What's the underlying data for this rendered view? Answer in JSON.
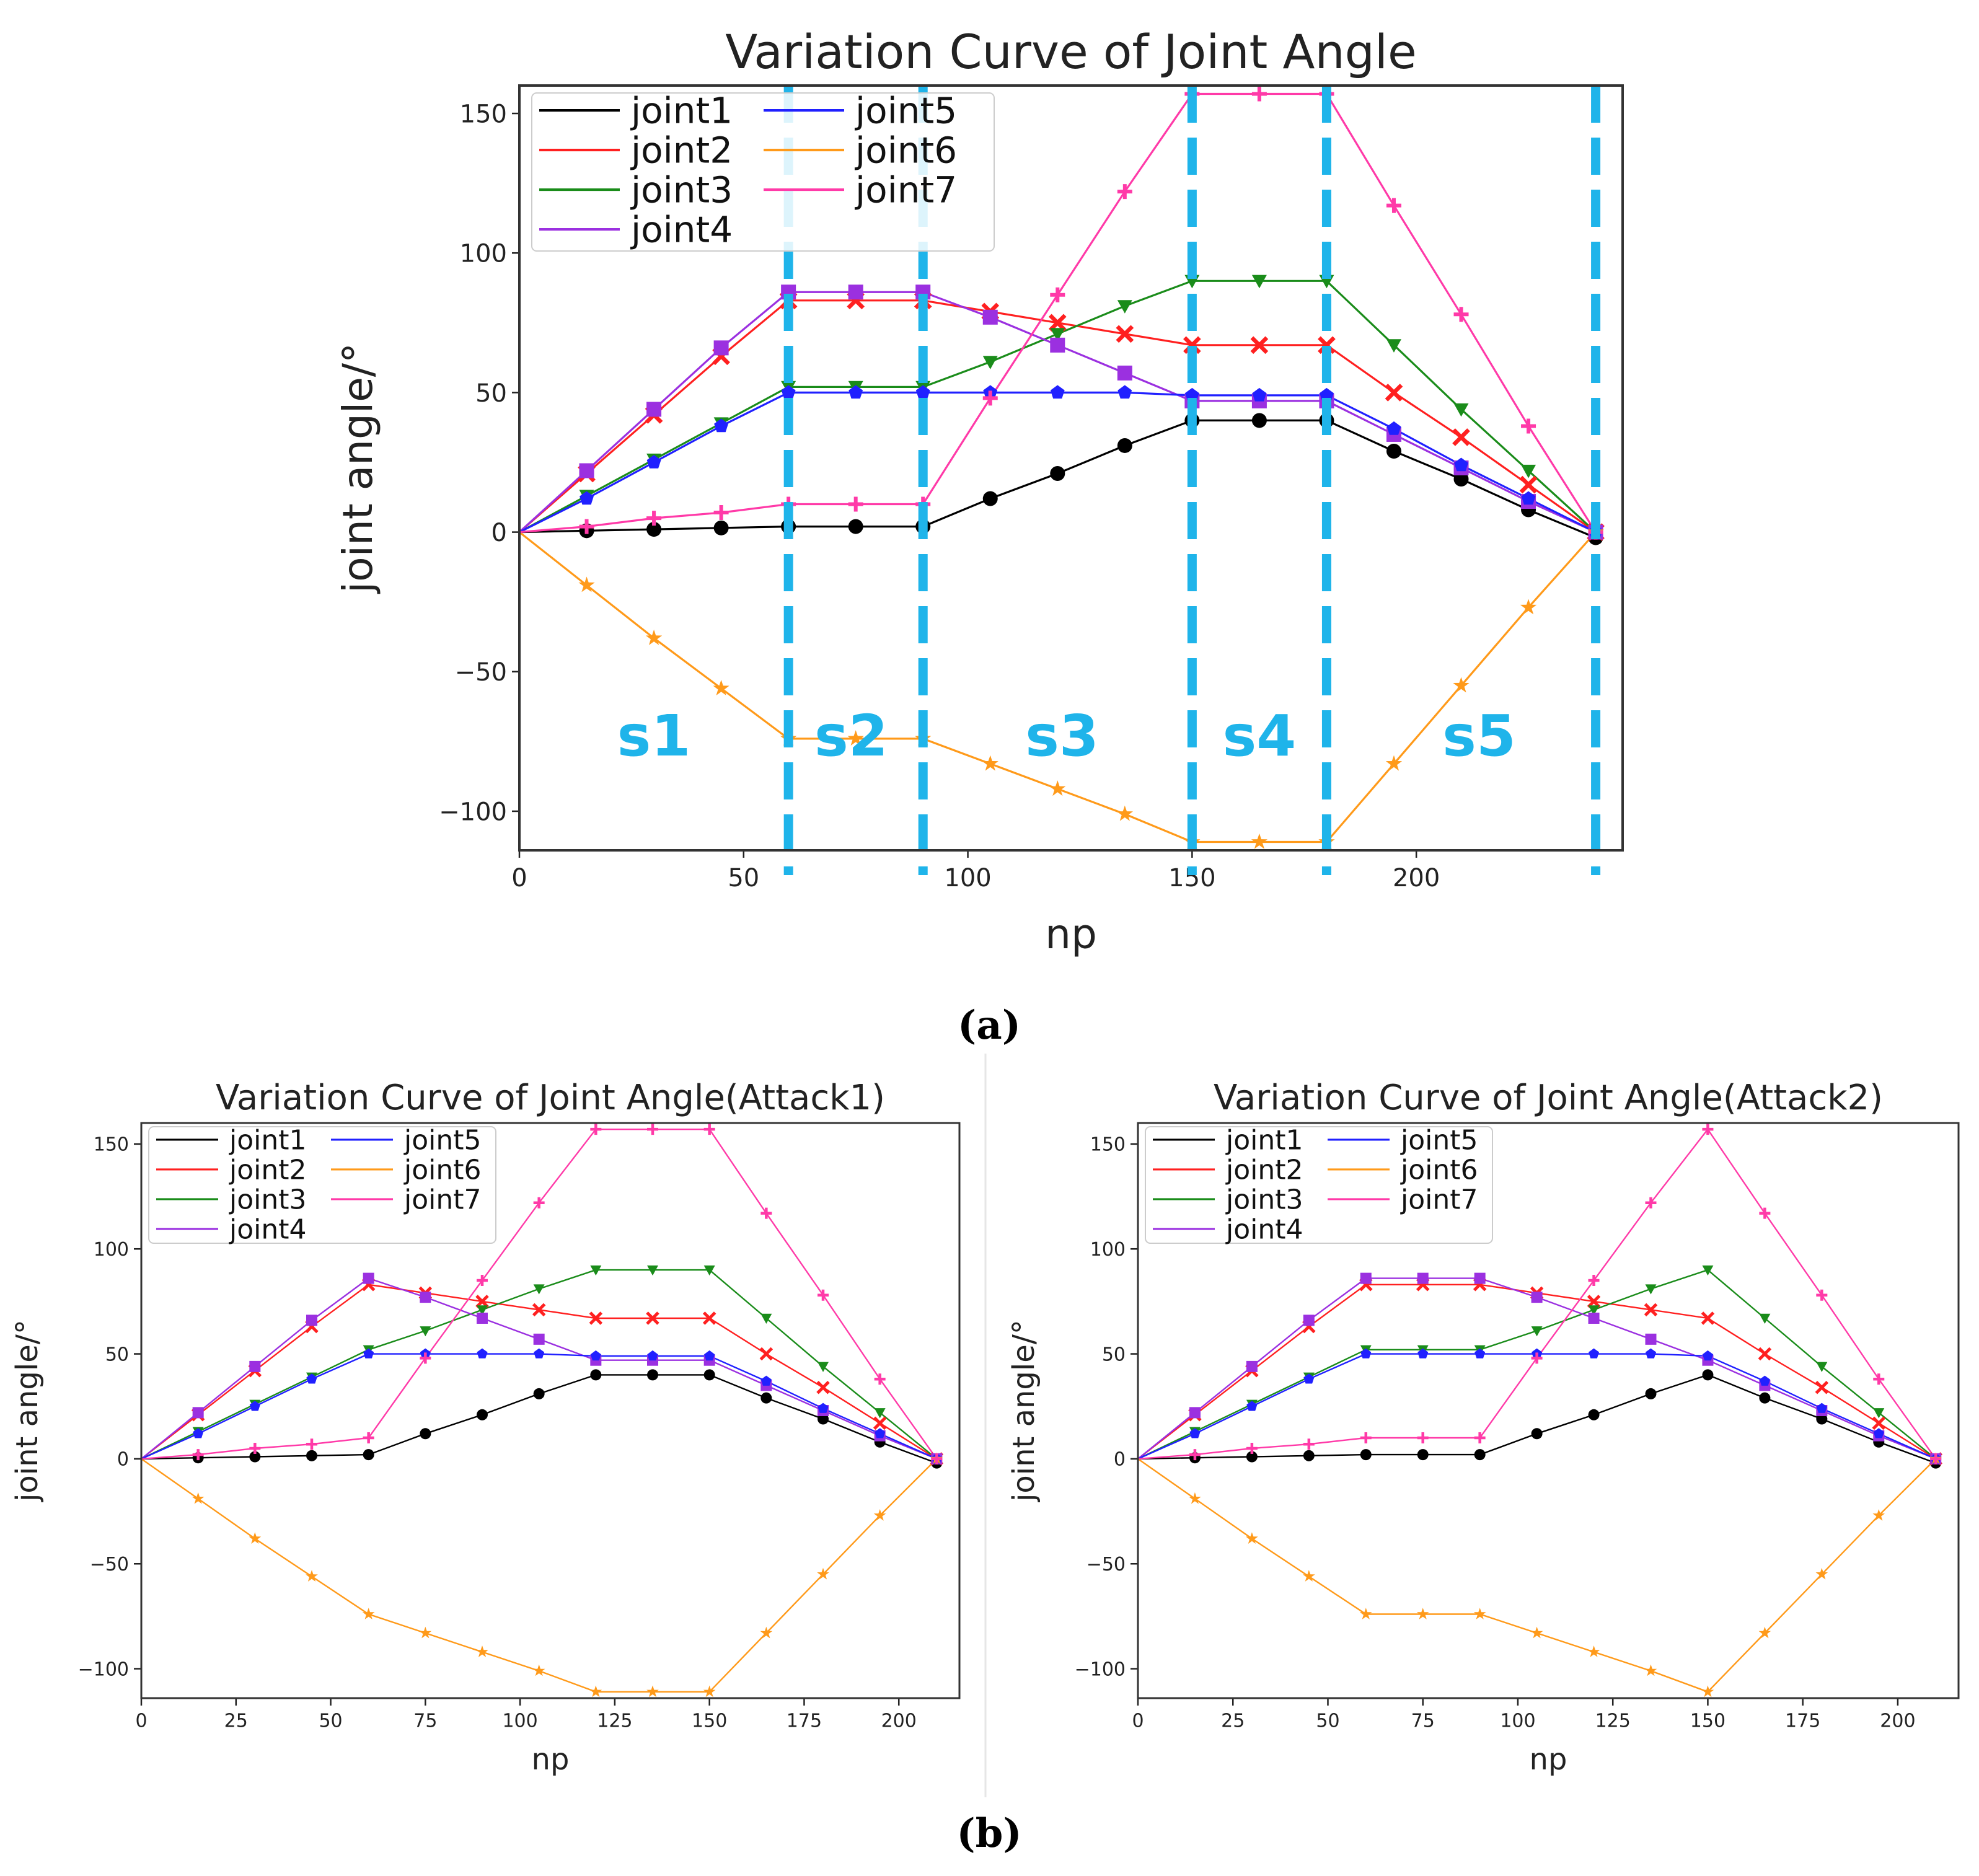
{
  "figure": {
    "caption_a": "(a)",
    "caption_b": "(b)"
  },
  "colors": {
    "joint1": "#000000",
    "joint2": "#ff2020",
    "joint3": "#1a8c1a",
    "joint4": "#9b30e0",
    "joint5": "#2020ff",
    "joint6": "#ff9a1a",
    "joint7": "#ff3aa8",
    "segment_lines": "#1fb4ea"
  },
  "chart_data": [
    {
      "id": "a",
      "type": "line",
      "title": "Variation Curve of Joint Angle",
      "xlabel": "np",
      "ylabel": "joint angle/°",
      "xlim": [
        0,
        246
      ],
      "ylim": [
        -114,
        160
      ],
      "xticks": [
        0,
        50,
        100,
        150,
        200
      ],
      "yticks": [
        -100,
        -50,
        0,
        50,
        100,
        150
      ],
      "legend": "top-left",
      "grid": false,
      "x": [
        0,
        15,
        30,
        45,
        60,
        75,
        90,
        105,
        120,
        135,
        150,
        165,
        180,
        195,
        210,
        225,
        240
      ],
      "series": [
        {
          "name": "joint1",
          "marker": "circle",
          "values": [
            0,
            0.5,
            1,
            1.5,
            2,
            2,
            2,
            12,
            21,
            31,
            40,
            40,
            40,
            29,
            19,
            8,
            -2
          ]
        },
        {
          "name": "joint2",
          "marker": "x",
          "values": [
            0,
            21,
            42,
            63,
            83,
            83,
            83,
            79,
            75,
            71,
            67,
            67,
            67,
            50,
            34,
            17,
            0
          ]
        },
        {
          "name": "joint3",
          "marker": "triangle",
          "values": [
            0,
            13,
            26,
            39,
            52,
            52,
            52,
            61,
            71,
            81,
            90,
            90,
            90,
            67,
            44,
            22,
            0
          ]
        },
        {
          "name": "joint4",
          "marker": "square",
          "values": [
            0,
            22,
            44,
            66,
            86,
            86,
            86,
            77,
            67,
            57,
            47,
            47,
            47,
            35,
            23,
            11,
            0
          ]
        },
        {
          "name": "joint5",
          "marker": "pentagon",
          "values": [
            0,
            12,
            25,
            38,
            50,
            50,
            50,
            50,
            50,
            50,
            49,
            49,
            49,
            37,
            24,
            12,
            0
          ]
        },
        {
          "name": "joint6",
          "marker": "star",
          "values": [
            0,
            -19,
            -38,
            -56,
            -74,
            -74,
            -74,
            -83,
            -92,
            -101,
            -111,
            -111,
            -111,
            -83,
            -55,
            -27,
            0
          ]
        },
        {
          "name": "joint7",
          "marker": "plus",
          "values": [
            0,
            2,
            5,
            7,
            10,
            10,
            10,
            48,
            85,
            122,
            157,
            157,
            157,
            117,
            78,
            38,
            0
          ]
        }
      ],
      "annotations": {
        "boundaries": [
          60,
          90,
          150,
          180,
          240
        ],
        "segments": [
          {
            "label": "s1",
            "x": 30
          },
          {
            "label": "s2",
            "x": 74
          },
          {
            "label": "s3",
            "x": 121
          },
          {
            "label": "s4",
            "x": 165
          },
          {
            "label": "s5",
            "x": 214
          }
        ]
      }
    },
    {
      "id": "b1",
      "type": "line",
      "title": "Variation Curve of Joint Angle(Attack1)",
      "xlabel": "np",
      "ylabel": "joint angle/°",
      "xlim": [
        0,
        216
      ],
      "ylim": [
        -114,
        160
      ],
      "xticks": [
        0,
        25,
        50,
        75,
        100,
        125,
        150,
        175,
        200
      ],
      "yticks": [
        -100,
        -50,
        0,
        50,
        100,
        150
      ],
      "legend": "top-left",
      "grid": false,
      "x": [
        0,
        15,
        30,
        45,
        60,
        75,
        90,
        105,
        120,
        135,
        150,
        165,
        180,
        195,
        210
      ],
      "series": [
        {
          "name": "joint1",
          "marker": "circle",
          "values": [
            0,
            0.5,
            1,
            1.5,
            2,
            12,
            21,
            31,
            40,
            40,
            40,
            29,
            19,
            8,
            -2
          ]
        },
        {
          "name": "joint2",
          "marker": "x",
          "values": [
            0,
            21,
            42,
            63,
            83,
            79,
            75,
            71,
            67,
            67,
            67,
            50,
            34,
            17,
            0
          ]
        },
        {
          "name": "joint3",
          "marker": "triangle",
          "values": [
            0,
            13,
            26,
            39,
            52,
            61,
            71,
            81,
            90,
            90,
            90,
            67,
            44,
            22,
            0
          ]
        },
        {
          "name": "joint4",
          "marker": "square",
          "values": [
            0,
            22,
            44,
            66,
            86,
            77,
            67,
            57,
            47,
            47,
            47,
            35,
            23,
            11,
            0
          ]
        },
        {
          "name": "joint5",
          "marker": "pentagon",
          "values": [
            0,
            12,
            25,
            38,
            50,
            50,
            50,
            50,
            49,
            49,
            49,
            37,
            24,
            12,
            0
          ]
        },
        {
          "name": "joint6",
          "marker": "star",
          "values": [
            0,
            -19,
            -38,
            -56,
            -74,
            -83,
            -92,
            -101,
            -111,
            -111,
            -111,
            -83,
            -55,
            -27,
            0
          ]
        },
        {
          "name": "joint7",
          "marker": "plus",
          "values": [
            0,
            2,
            5,
            7,
            10,
            48,
            85,
            122,
            157,
            157,
            157,
            117,
            78,
            38,
            0
          ]
        }
      ]
    },
    {
      "id": "b2",
      "type": "line",
      "title": "Variation Curve of Joint Angle(Attack2)",
      "xlabel": "np",
      "ylabel": "joint angle/°",
      "xlim": [
        0,
        216
      ],
      "ylim": [
        -114,
        160
      ],
      "xticks": [
        0,
        25,
        50,
        75,
        100,
        125,
        150,
        175,
        200
      ],
      "yticks": [
        -100,
        -50,
        0,
        50,
        100,
        150
      ],
      "legend": "top-left",
      "grid": false,
      "x": [
        0,
        15,
        30,
        45,
        60,
        75,
        90,
        105,
        120,
        135,
        150,
        165,
        180,
        195,
        210
      ],
      "series": [
        {
          "name": "joint1",
          "marker": "circle",
          "values": [
            0,
            0.5,
            1,
            1.5,
            2,
            2,
            2,
            12,
            21,
            31,
            40,
            29,
            19,
            8,
            -2
          ]
        },
        {
          "name": "joint2",
          "marker": "x",
          "values": [
            0,
            21,
            42,
            63,
            83,
            83,
            83,
            79,
            75,
            71,
            67,
            50,
            34,
            17,
            0
          ]
        },
        {
          "name": "joint3",
          "marker": "triangle",
          "values": [
            0,
            13,
            26,
            39,
            52,
            52,
            52,
            61,
            71,
            81,
            90,
            67,
            44,
            22,
            0
          ]
        },
        {
          "name": "joint4",
          "marker": "square",
          "values": [
            0,
            22,
            44,
            66,
            86,
            86,
            86,
            77,
            67,
            57,
            47,
            35,
            23,
            11,
            0
          ]
        },
        {
          "name": "joint5",
          "marker": "pentagon",
          "values": [
            0,
            12,
            25,
            38,
            50,
            50,
            50,
            50,
            50,
            50,
            49,
            37,
            24,
            12,
            0
          ]
        },
        {
          "name": "joint6",
          "marker": "star",
          "values": [
            0,
            -19,
            -38,
            -56,
            -74,
            -74,
            -74,
            -83,
            -92,
            -101,
            -111,
            -83,
            -55,
            -27,
            0
          ]
        },
        {
          "name": "joint7",
          "marker": "plus",
          "values": [
            0,
            2,
            5,
            7,
            10,
            10,
            10,
            48,
            85,
            122,
            157,
            117,
            78,
            38,
            0
          ]
        }
      ]
    }
  ]
}
